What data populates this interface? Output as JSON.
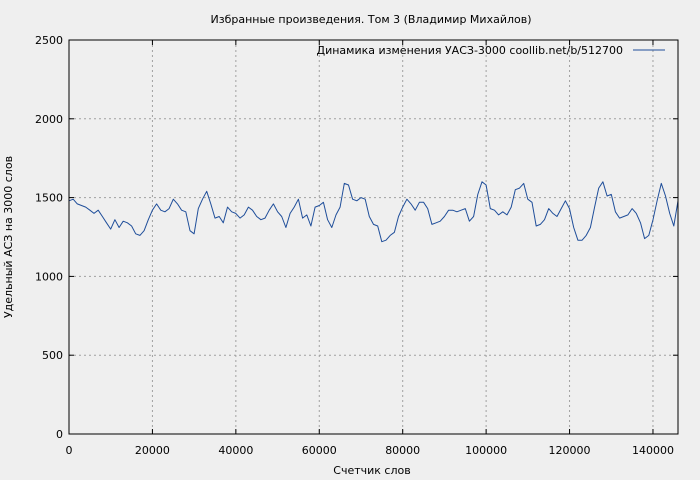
{
  "chart_data": {
    "type": "line",
    "title": "Избранные произведения. Том 3 (Владимир Михайлов)",
    "xlabel": "Счетчик слов",
    "ylabel": "Удельный АСЗ на 3000 слов",
    "xlim": [
      0,
      146000
    ],
    "ylim": [
      0,
      2500
    ],
    "x_ticks": [
      0,
      20000,
      40000,
      60000,
      80000,
      100000,
      120000,
      140000
    ],
    "y_ticks": [
      0,
      500,
      1000,
      1500,
      2000,
      2500
    ],
    "grid": true,
    "legend_position": "top-right",
    "line_color": "#1f4e9a",
    "series": [
      {
        "name": "Динамика изменения УАСЗ-3000  coollib.net/b/512700",
        "x": [
          0,
          1000,
          2000,
          3000,
          4000,
          5000,
          6000,
          7000,
          8000,
          9000,
          10000,
          11000,
          12000,
          13000,
          14000,
          15000,
          16000,
          17000,
          18000,
          19000,
          20000,
          21000,
          22000,
          23000,
          24000,
          25000,
          26000,
          27000,
          28000,
          29000,
          30000,
          31000,
          32000,
          33000,
          34000,
          35000,
          36000,
          37000,
          38000,
          39000,
          40000,
          41000,
          42000,
          43000,
          44000,
          45000,
          46000,
          47000,
          48000,
          49000,
          50000,
          51000,
          52000,
          53000,
          54000,
          55000,
          56000,
          57000,
          58000,
          59000,
          60000,
          61000,
          62000,
          63000,
          64000,
          65000,
          66000,
          67000,
          68000,
          69000,
          70000,
          71000,
          72000,
          73000,
          74000,
          75000,
          76000,
          77000,
          78000,
          79000,
          80000,
          81000,
          82000,
          83000,
          84000,
          85000,
          86000,
          87000,
          88000,
          89000,
          90000,
          91000,
          92000,
          93000,
          94000,
          95000,
          96000,
          97000,
          98000,
          99000,
          100000,
          101000,
          102000,
          103000,
          104000,
          105000,
          106000,
          107000,
          108000,
          109000,
          110000,
          111000,
          112000,
          113000,
          114000,
          115000,
          116000,
          117000,
          118000,
          119000,
          120000,
          121000,
          122000,
          123000,
          124000,
          125000,
          126000,
          127000,
          128000,
          129000,
          130000,
          131000,
          132000,
          133000,
          134000,
          135000,
          136000,
          137000,
          138000,
          139000,
          140000,
          141000,
          142000,
          143000,
          144000,
          145000,
          146000
        ],
        "y": [
          1480,
          1490,
          1460,
          1450,
          1440,
          1420,
          1400,
          1420,
          1380,
          1340,
          1300,
          1360,
          1310,
          1350,
          1340,
          1320,
          1270,
          1260,
          1290,
          1360,
          1420,
          1460,
          1420,
          1410,
          1430,
          1490,
          1460,
          1420,
          1410,
          1290,
          1270,
          1430,
          1490,
          1540,
          1460,
          1370,
          1380,
          1340,
          1440,
          1410,
          1400,
          1370,
          1390,
          1440,
          1420,
          1380,
          1360,
          1370,
          1420,
          1460,
          1410,
          1380,
          1310,
          1400,
          1440,
          1490,
          1370,
          1390,
          1320,
          1440,
          1450,
          1470,
          1360,
          1310,
          1390,
          1440,
          1590,
          1580,
          1490,
          1480,
          1500,
          1490,
          1380,
          1330,
          1320,
          1220,
          1230,
          1260,
          1280,
          1380,
          1440,
          1490,
          1460,
          1420,
          1470,
          1470,
          1430,
          1330,
          1340,
          1350,
          1380,
          1420,
          1420,
          1410,
          1420,
          1430,
          1350,
          1380,
          1520,
          1600,
          1580,
          1430,
          1420,
          1390,
          1410,
          1390,
          1440,
          1550,
          1560,
          1590,
          1490,
          1470,
          1320,
          1330,
          1360,
          1430,
          1400,
          1380,
          1430,
          1480,
          1430,
          1310,
          1230,
          1230,
          1260,
          1310,
          1440,
          1560,
          1600,
          1510,
          1520,
          1410,
          1370,
          1380,
          1390,
          1430,
          1400,
          1340,
          1240,
          1260,
          1360,
          1480,
          1590,
          1510,
          1400,
          1320,
          1480
        ]
      }
    ]
  }
}
